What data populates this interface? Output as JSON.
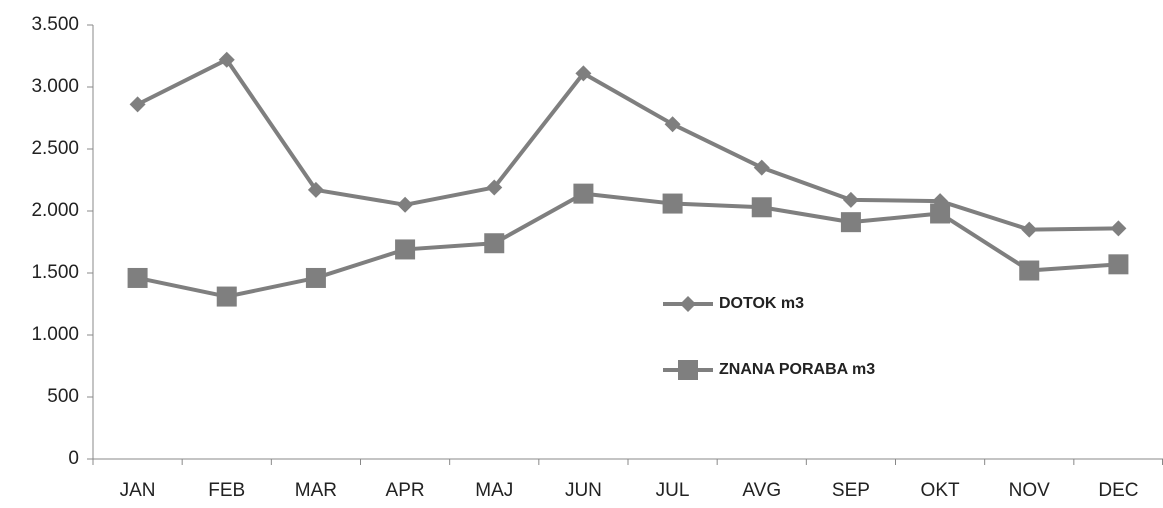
{
  "chart_data": {
    "type": "line",
    "categories": [
      "JAN",
      "FEB",
      "MAR",
      "APR",
      "MAJ",
      "JUN",
      "JUL",
      "AVG",
      "SEP",
      "OKT",
      "NOV",
      "DEC"
    ],
    "series": [
      {
        "name": "DOTOK m3",
        "color": "#7f7f7f",
        "marker": "diamond",
        "values": [
          2860,
          3220,
          2170,
          2050,
          2190,
          3110,
          2700,
          2350,
          2090,
          2080,
          1850,
          1860
        ]
      },
      {
        "name": "ZNANA PORABA m3",
        "color": "#7f7f7f",
        "marker": "square",
        "values": [
          1460,
          1310,
          1460,
          1690,
          1740,
          2140,
          2060,
          2030,
          1910,
          1980,
          1520,
          1570
        ]
      }
    ],
    "ylim": [
      0,
      3500
    ],
    "yticks": [
      0,
      500,
      {
        "value": 1000,
        "label": "1.000"
      },
      {
        "value": 1500,
        "label": "1.500"
      },
      {
        "value": 2000,
        "label": "2.000"
      },
      {
        "value": 2500,
        "label": "2.500"
      },
      {
        "value": 3000,
        "label": "3.000"
      },
      {
        "value": 3500,
        "label": "3.500"
      }
    ],
    "grid": false
  }
}
